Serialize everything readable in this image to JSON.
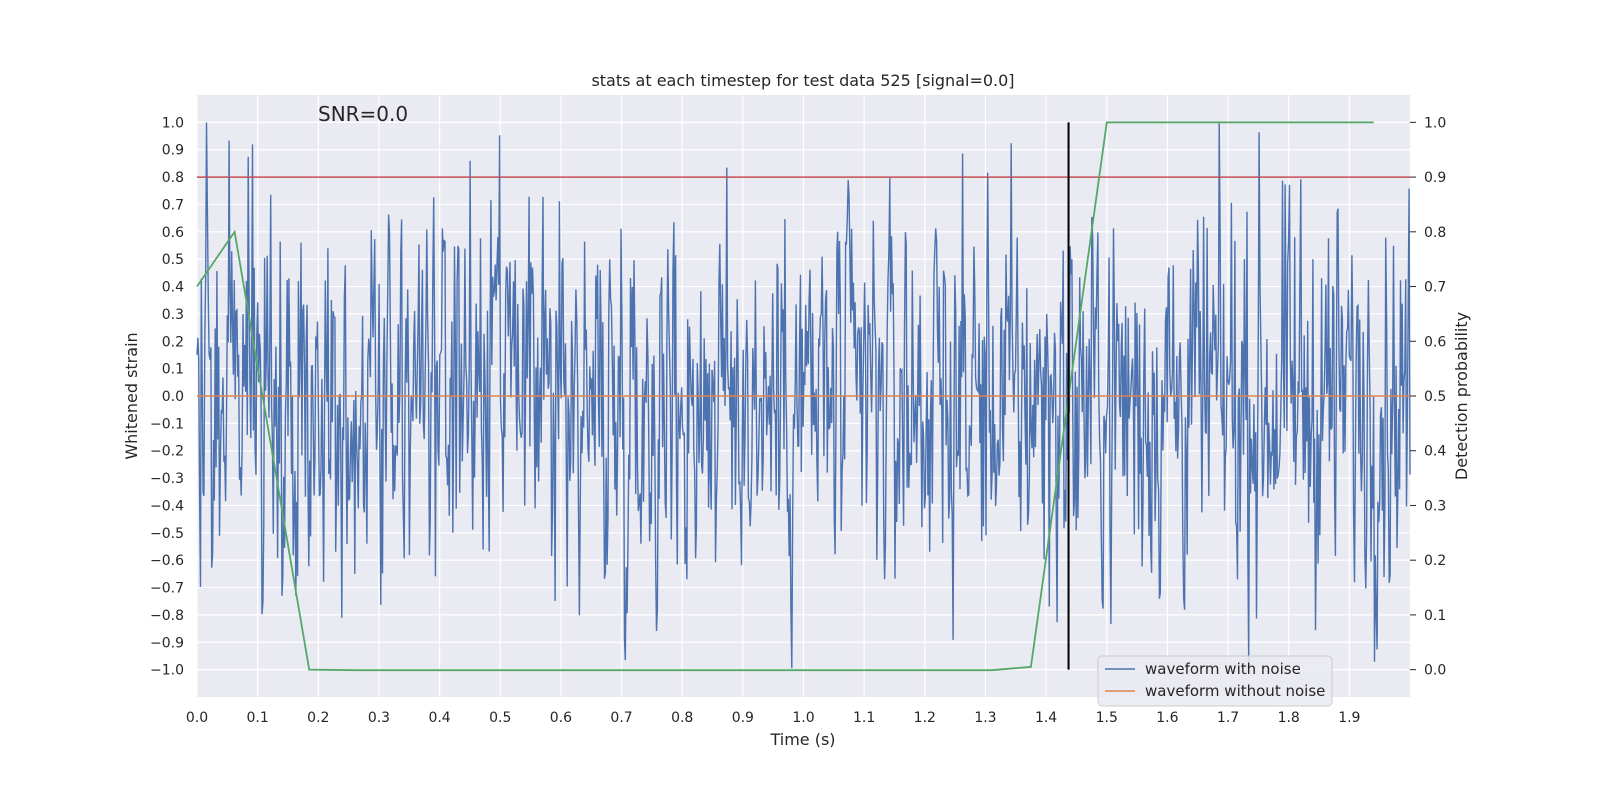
{
  "chart_data": {
    "type": "line",
    "title": "stats at each timestep for test data 525 [signal=0.0]",
    "annotation": "SNR=0.0",
    "xlabel": "Time (s)",
    "ylabel": "Whitened strain",
    "y2label": "Detection probability",
    "xlim": [
      0.0,
      2.0
    ],
    "ylim": [
      -1.1,
      1.1
    ],
    "y2lim": [
      -0.05,
      1.05
    ],
    "x_ticks": [
      "0.0",
      "0.1",
      "0.2",
      "0.3",
      "0.4",
      "0.5",
      "0.6",
      "0.7",
      "0.8",
      "0.9",
      "1.0",
      "1.1",
      "1.2",
      "1.3",
      "1.4",
      "1.5",
      "1.6",
      "1.7",
      "1.8",
      "1.9"
    ],
    "y_ticks": [
      "1.0",
      "0.9",
      "0.8",
      "0.7",
      "0.6",
      "0.5",
      "0.4",
      "0.3",
      "0.2",
      "0.1",
      "0.0",
      "-0.1",
      "-0.2",
      "-0.3",
      "-0.4",
      "-0.5",
      "-0.6",
      "-0.7",
      "-0.8",
      "-0.9",
      "-1.0"
    ],
    "y2_ticks": [
      "1.0",
      "0.9",
      "0.8",
      "0.7",
      "0.6",
      "0.5",
      "0.4",
      "0.3",
      "0.2",
      "0.1",
      "0.0"
    ],
    "grid": true,
    "legend_position": "bottom-right",
    "series": [
      {
        "name": "waveform with noise",
        "color": "#4c72b0",
        "axis": "left",
        "sampling": {
          "start": 0.0,
          "end": 2.0,
          "count": 1400,
          "amplitude_range": [
            -1.0,
            1.0
          ],
          "approx_peak": 1.0,
          "approx_trough": -0.99
        }
      },
      {
        "name": "waveform without noise",
        "color": "#dd8452",
        "axis": "left",
        "x": [
          0.0,
          2.0
        ],
        "y": [
          0.0,
          0.0
        ]
      },
      {
        "color": "#55a868",
        "axis": "right",
        "x": [
          0.0,
          0.062,
          0.185,
          0.26,
          1.31,
          1.375,
          1.5,
          1.94
        ],
        "y": [
          0.7,
          0.8,
          0.0,
          -0.001,
          -0.001,
          0.005,
          1.0,
          1.0
        ]
      }
    ],
    "threshold_line": {
      "y2": 0.9,
      "color": "#c44e52"
    },
    "marker_line": {
      "x": 1.437,
      "y2_from": 0.0,
      "y2_to": 1.0,
      "color": "#000000"
    },
    "colors": {
      "axes_bg": "#eaeaf2",
      "grid": "#ffffff",
      "noise": "#4c72b0",
      "clean": "#dd8452",
      "probability": "#55a868",
      "threshold": "#c44e52",
      "marker": "#000000"
    }
  }
}
